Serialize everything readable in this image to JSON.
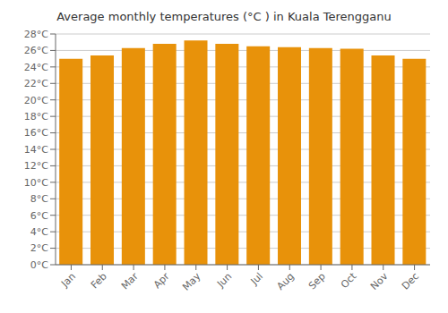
{
  "chart_data": {
    "type": "bar",
    "title": "Average monthly temperatures (°C ) in Kuala Terengganu",
    "categories": [
      "Jan",
      "Feb",
      "Mar",
      "Apr",
      "May",
      "Jun",
      "Jul",
      "Aug",
      "Sep",
      "Oct",
      "Nov",
      "Dec"
    ],
    "values": [
      25.0,
      25.4,
      26.3,
      26.8,
      27.2,
      26.8,
      26.5,
      26.4,
      26.3,
      26.2,
      25.4,
      25.0
    ],
    "color": "#E8920A",
    "ylim": [
      0,
      28
    ],
    "yticks": [
      {
        "value": 0,
        "label": "0°C"
      },
      {
        "value": 2,
        "label": "2°C"
      },
      {
        "value": 4,
        "label": "4°C"
      },
      {
        "value": 6,
        "label": "6°C"
      },
      {
        "value": 8,
        "label": "8°C"
      },
      {
        "value": 10,
        "label": "10°C"
      },
      {
        "value": 12,
        "label": "12°C"
      },
      {
        "value": 14,
        "label": "14°C"
      },
      {
        "value": 16,
        "label": "16°C"
      },
      {
        "value": 18,
        "label": "18°C"
      },
      {
        "value": 20,
        "label": "20°C"
      },
      {
        "value": 22,
        "label": "22°C"
      },
      {
        "value": 24,
        "label": "24°C"
      },
      {
        "value": 26,
        "label": "26°C"
      },
      {
        "value": 28,
        "label": "28°C"
      }
    ],
    "grid": true
  }
}
